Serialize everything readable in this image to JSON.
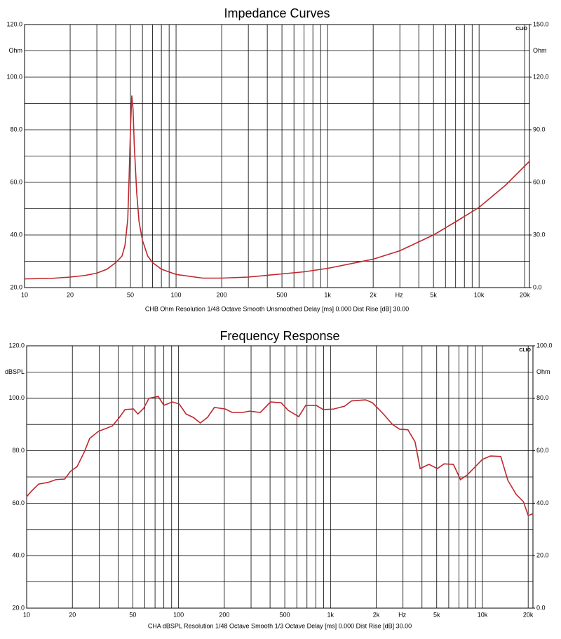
{
  "chart_data": [
    {
      "type": "line",
      "title": "Impedance Curves",
      "xlog": true,
      "grid": true,
      "color": "#c0272d",
      "x": [
        10,
        15,
        20,
        25,
        30,
        35,
        40,
        44,
        46,
        48,
        49,
        50,
        51,
        52,
        53,
        55,
        57,
        60,
        65,
        70,
        80,
        100,
        150,
        200,
        300,
        500,
        700,
        1000,
        2000,
        3000,
        5000,
        7000,
        10000,
        15000,
        21500
      ],
      "values": [
        23.3,
        23.5,
        24,
        24.6,
        25.5,
        27,
        29.5,
        32,
        36,
        46,
        62,
        80,
        93,
        88,
        74,
        56,
        45,
        38,
        32,
        29.5,
        27,
        25,
        23.6,
        23.6,
        24,
        25.2,
        26,
        27.3,
        30.8,
        34,
        40,
        45,
        50.5,
        59,
        68
      ],
      "xlim": [
        10,
        21500
      ],
      "xticks": [
        10,
        20,
        50,
        100,
        200,
        500,
        {
          "value": 1000,
          "label": "1k"
        },
        {
          "value": 2000,
          "label": "2k"
        },
        {
          "value": 5000,
          "label": "5k"
        },
        {
          "value": 10000,
          "label": "10k"
        },
        {
          "value": 20000,
          "label": "20k"
        }
      ],
      "x_unit": "Hz",
      "xgrid": [
        10,
        20,
        30,
        40,
        50,
        60,
        70,
        80,
        90,
        100,
        200,
        300,
        400,
        500,
        600,
        700,
        800,
        900,
        1000,
        2000,
        3000,
        4000,
        5000,
        6000,
        7000,
        8000,
        9000,
        10000,
        20000
      ],
      "ylim": [
        20,
        120
      ],
      "yticks": [
        {
          "value": 20,
          "label": "20.0"
        },
        {
          "value": 40,
          "label": "40.0"
        },
        {
          "value": 60,
          "label": "60.0"
        },
        {
          "value": 80,
          "label": "80.0"
        },
        {
          "value": 100,
          "label": "100.0"
        },
        {
          "value": 120,
          "label": "120.0"
        }
      ],
      "ygrid": [
        30,
        50,
        70,
        90,
        110
      ],
      "y_unit": "Ohm",
      "y2lim": [
        0,
        150
      ],
      "y2ticks": [
        {
          "value": 0,
          "label": "0.0"
        },
        {
          "value": 30,
          "label": "30.0"
        },
        {
          "value": 60,
          "label": "60.0"
        },
        {
          "value": 90,
          "label": "90.0"
        },
        {
          "value": 120,
          "label": "120.0"
        },
        {
          "value": 150,
          "label": "150.0"
        }
      ],
      "y2_unit": "Ohm",
      "logo": "CLIO",
      "footer": "CHB Ohm Resolution 1/48 Octave Smooth Unsmoothed Delay [ms] 0.000 Dist Rise [dB] 30.00"
    },
    {
      "type": "line",
      "title": "Frequency Response",
      "xlog": true,
      "grid": true,
      "color": "#c0272d",
      "x": [
        10,
        10.8,
        12,
        13.8,
        15.6,
        17.8,
        19.4,
        21.5,
        23.9,
        26,
        29.7,
        33,
        36.7,
        40.8,
        44.4,
        50.5,
        54,
        59,
        63.8,
        73.5,
        80,
        91,
        101,
        112,
        125,
        139,
        155,
        172,
        203,
        225,
        264,
        293,
        345,
        403,
        473,
        527,
        618,
        687,
        805,
        896,
        1050,
        1240,
        1376,
        1700,
        1890,
        2230,
        2560,
        2850,
        3230,
        3600,
        3890,
        4450,
        5050,
        5590,
        6440,
        7170,
        7950,
        10000,
        11300,
        13200,
        14700,
        16700,
        18600,
        20000,
        21500
      ],
      "values": [
        62.5,
        64.7,
        67.3,
        67.9,
        69,
        69.2,
        72.1,
        74,
        79.4,
        84.7,
        87.4,
        88.4,
        89.5,
        92.7,
        95.7,
        95.9,
        94,
        96.2,
        100,
        100.7,
        97.3,
        98.6,
        97.8,
        94,
        92.7,
        90.6,
        92.7,
        96.5,
        95.9,
        94.6,
        94.6,
        95.1,
        94.6,
        98.6,
        98.3,
        95.4,
        93,
        97.3,
        97.3,
        95.7,
        95.9,
        97,
        99,
        99.4,
        98.3,
        94,
        90,
        88.2,
        88,
        83.4,
        73.2,
        74.8,
        73.2,
        75,
        74.8,
        69,
        70.8,
        76.7,
        78,
        77.8,
        68.7,
        63.3,
        60.6,
        55.3,
        56
      ],
      "xlim": [
        10,
        21500
      ],
      "xticks": [
        10,
        20,
        50,
        100,
        200,
        500,
        {
          "value": 1000,
          "label": "1k"
        },
        {
          "value": 2000,
          "label": "2k"
        },
        {
          "value": 5000,
          "label": "5k"
        },
        {
          "value": 10000,
          "label": "10k"
        },
        {
          "value": 20000,
          "label": "20k"
        }
      ],
      "x_unit": "Hz",
      "xgrid": [
        10,
        20,
        30,
        40,
        50,
        60,
        70,
        80,
        90,
        100,
        200,
        300,
        400,
        500,
        600,
        700,
        800,
        900,
        1000,
        2000,
        3000,
        4000,
        5000,
        6000,
        7000,
        8000,
        9000,
        10000,
        20000
      ],
      "ylim": [
        20,
        120
      ],
      "yticks": [
        {
          "value": 20,
          "label": "20.0"
        },
        {
          "value": 40,
          "label": "40.0"
        },
        {
          "value": 60,
          "label": "60.0"
        },
        {
          "value": 80,
          "label": "80.0"
        },
        {
          "value": 100,
          "label": "100.0"
        },
        {
          "value": 120,
          "label": "120.0"
        }
      ],
      "ygrid": [
        30,
        50,
        70,
        90,
        110
      ],
      "y_unit": "dBSPL",
      "y2lim": [
        0,
        100
      ],
      "y2ticks": [
        {
          "value": 0,
          "label": "0.0"
        },
        {
          "value": 20,
          "label": "20.0"
        },
        {
          "value": 40,
          "label": "40.0"
        },
        {
          "value": 60,
          "label": "60.0"
        },
        {
          "value": 80,
          "label": "80.0"
        },
        {
          "value": 100,
          "label": "100.0"
        }
      ],
      "y2_unit": "Ohm",
      "logo": "CLIO",
      "footer": "CHA dBSPL Resolution 1/48 Octave Smooth 1/3 Octave Delay [ms] 0.000 Dist Rise [dB] 30.00"
    }
  ]
}
